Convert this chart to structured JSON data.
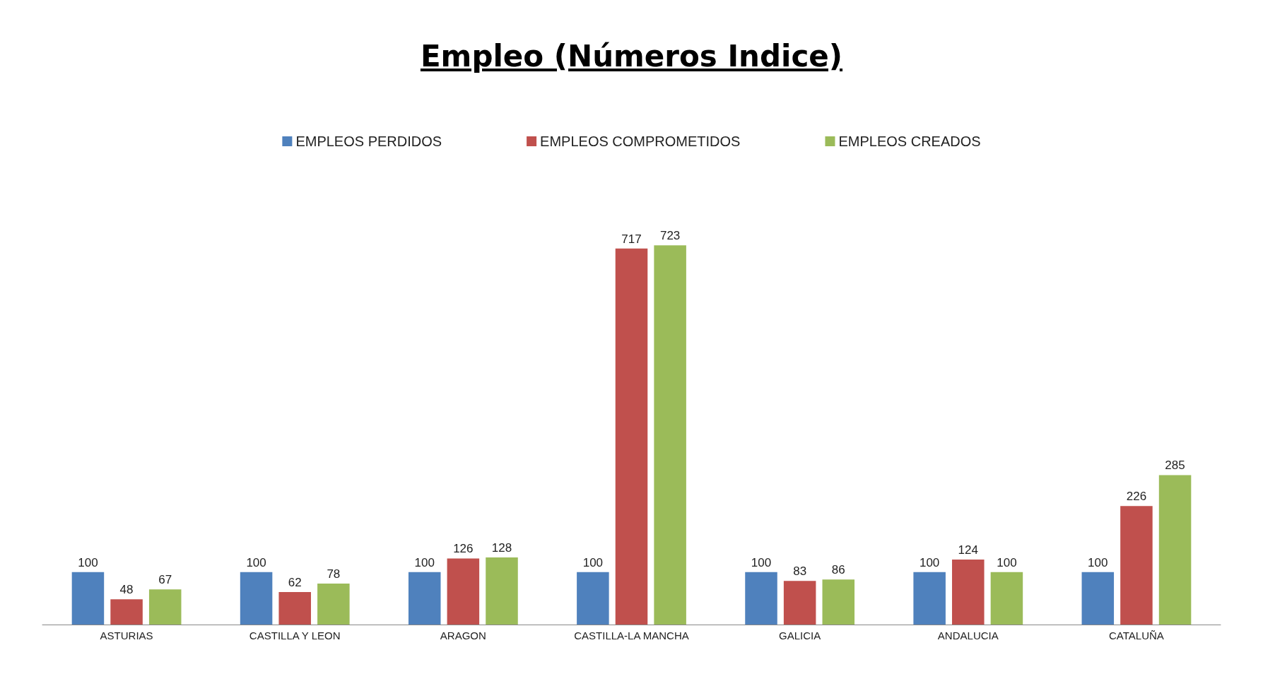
{
  "chart_data": {
    "type": "bar",
    "title": "Empleo (Números Indice)",
    "categories": [
      "ASTURIAS",
      "CASTILLA Y LEON",
      "ARAGON",
      "CASTILLA-LA MANCHA",
      "GALICIA",
      "ANDALUCIA",
      "CATALUÑA"
    ],
    "series": [
      {
        "name": "EMPLEOS PERDIDOS",
        "color": "#4f81bd",
        "values": [
          100,
          100,
          100,
          100,
          100,
          100,
          100
        ]
      },
      {
        "name": "EMPLEOS COMPROMETIDOS",
        "color": "#c0504d",
        "values": [
          48,
          62,
          126,
          717,
          83,
          124,
          226
        ]
      },
      {
        "name": "EMPLEOS CREADOS",
        "color": "#9bbb59",
        "values": [
          67,
          78,
          128,
          723,
          86,
          100,
          285
        ]
      }
    ],
    "data_labels": true,
    "legend": "top"
  }
}
